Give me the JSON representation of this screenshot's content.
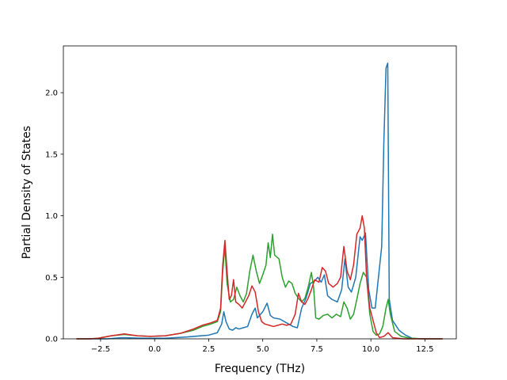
{
  "chart_data": {
    "type": "line",
    "title": "",
    "xlabel": "Frequency (THz)",
    "ylabel": "Partial Density of States",
    "xlim": [
      -4.22,
      13.95
    ],
    "ylim": [
      0,
      2.38
    ],
    "xticks": [
      -2.5,
      0.0,
      2.5,
      5.0,
      7.5,
      10.0,
      12.5
    ],
    "xtick_labels": [
      "−2.5",
      "0.0",
      "2.5",
      "5.0",
      "7.5",
      "10.0",
      "12.5"
    ],
    "yticks": [
      0.0,
      0.5,
      1.0,
      1.5,
      2.0
    ],
    "ytick_labels": [
      "0.0",
      "0.5",
      "1.0",
      "1.5",
      "2.0"
    ],
    "grid": false,
    "series": [
      {
        "color": "#1f77b4",
        "points": [
          [
            -3.6,
            0
          ],
          [
            -3,
            0
          ],
          [
            -2.2,
            0
          ],
          [
            -1.5,
            0.01
          ],
          [
            -0.5,
            0.005
          ],
          [
            0.5,
            0.005
          ],
          [
            1.5,
            0.015
          ],
          [
            2.5,
            0.03
          ],
          [
            2.9,
            0.05
          ],
          [
            3.1,
            0.12
          ],
          [
            3.2,
            0.22
          ],
          [
            3.3,
            0.14
          ],
          [
            3.45,
            0.08
          ],
          [
            3.6,
            0.07
          ],
          [
            3.75,
            0.09
          ],
          [
            3.9,
            0.08
          ],
          [
            4.1,
            0.09
          ],
          [
            4.3,
            0.1
          ],
          [
            4.5,
            0.2
          ],
          [
            4.65,
            0.25
          ],
          [
            4.75,
            0.17
          ],
          [
            5.0,
            0.22
          ],
          [
            5.2,
            0.29
          ],
          [
            5.35,
            0.19
          ],
          [
            5.5,
            0.17
          ],
          [
            5.8,
            0.16
          ],
          [
            6.1,
            0.13
          ],
          [
            6.4,
            0.1
          ],
          [
            6.6,
            0.09
          ],
          [
            6.8,
            0.25
          ],
          [
            7.0,
            0.33
          ],
          [
            7.2,
            0.45
          ],
          [
            7.4,
            0.47
          ],
          [
            7.55,
            0.5
          ],
          [
            7.7,
            0.46
          ],
          [
            7.85,
            0.52
          ],
          [
            8.0,
            0.35
          ],
          [
            8.2,
            0.32
          ],
          [
            8.45,
            0.3
          ],
          [
            8.65,
            0.4
          ],
          [
            8.8,
            0.65
          ],
          [
            8.95,
            0.42
          ],
          [
            9.1,
            0.38
          ],
          [
            9.3,
            0.5
          ],
          [
            9.5,
            0.83
          ],
          [
            9.6,
            0.8
          ],
          [
            9.75,
            0.86
          ],
          [
            9.9,
            0.4
          ],
          [
            10.05,
            0.25
          ],
          [
            10.2,
            0.25
          ],
          [
            10.35,
            0.5
          ],
          [
            10.5,
            0.75
          ],
          [
            10.6,
            1.6
          ],
          [
            10.7,
            2.2
          ],
          [
            10.78,
            2.24
          ],
          [
            10.85,
            0.32
          ],
          [
            11.0,
            0.15
          ],
          [
            11.3,
            0.07
          ],
          [
            11.6,
            0.03
          ],
          [
            11.9,
            0.005
          ],
          [
            12.3,
            0
          ],
          [
            13.3,
            0
          ]
        ]
      },
      {
        "color": "#2ca02c",
        "points": [
          [
            -3.6,
            0
          ],
          [
            -3,
            0
          ],
          [
            -2.6,
            0.005
          ],
          [
            -2.0,
            0.025
          ],
          [
            -1.4,
            0.035
          ],
          [
            -0.8,
            0.025
          ],
          [
            -0.2,
            0.02
          ],
          [
            0.5,
            0.025
          ],
          [
            1.2,
            0.045
          ],
          [
            1.8,
            0.07
          ],
          [
            2.2,
            0.1
          ],
          [
            2.6,
            0.12
          ],
          [
            2.9,
            0.14
          ],
          [
            3.05,
            0.22
          ],
          [
            3.15,
            0.55
          ],
          [
            3.25,
            0.75
          ],
          [
            3.35,
            0.45
          ],
          [
            3.5,
            0.3
          ],
          [
            3.65,
            0.32
          ],
          [
            3.8,
            0.42
          ],
          [
            3.95,
            0.35
          ],
          [
            4.1,
            0.3
          ],
          [
            4.25,
            0.37
          ],
          [
            4.4,
            0.55
          ],
          [
            4.55,
            0.68
          ],
          [
            4.7,
            0.55
          ],
          [
            4.85,
            0.45
          ],
          [
            5.0,
            0.52
          ],
          [
            5.15,
            0.6
          ],
          [
            5.25,
            0.78
          ],
          [
            5.35,
            0.66
          ],
          [
            5.45,
            0.85
          ],
          [
            5.55,
            0.68
          ],
          [
            5.75,
            0.65
          ],
          [
            5.9,
            0.5
          ],
          [
            6.05,
            0.42
          ],
          [
            6.2,
            0.47
          ],
          [
            6.35,
            0.45
          ],
          [
            6.5,
            0.37
          ],
          [
            6.65,
            0.33
          ],
          [
            6.8,
            0.3
          ],
          [
            6.95,
            0.33
          ],
          [
            7.1,
            0.42
          ],
          [
            7.25,
            0.54
          ],
          [
            7.35,
            0.42
          ],
          [
            7.45,
            0.17
          ],
          [
            7.6,
            0.16
          ],
          [
            7.8,
            0.19
          ],
          [
            8.0,
            0.2
          ],
          [
            8.2,
            0.17
          ],
          [
            8.4,
            0.2
          ],
          [
            8.6,
            0.18
          ],
          [
            8.75,
            0.3
          ],
          [
            8.9,
            0.25
          ],
          [
            9.05,
            0.16
          ],
          [
            9.2,
            0.2
          ],
          [
            9.35,
            0.32
          ],
          [
            9.5,
            0.45
          ],
          [
            9.65,
            0.54
          ],
          [
            9.8,
            0.5
          ],
          [
            9.95,
            0.2
          ],
          [
            10.1,
            0.06
          ],
          [
            10.25,
            0.03
          ],
          [
            10.4,
            0.04
          ],
          [
            10.55,
            0.1
          ],
          [
            10.7,
            0.25
          ],
          [
            10.8,
            0.32
          ],
          [
            10.9,
            0.2
          ],
          [
            11.1,
            0.06
          ],
          [
            11.4,
            0.02
          ],
          [
            11.8,
            0.005
          ],
          [
            12.5,
            0
          ],
          [
            13.3,
            0
          ]
        ]
      },
      {
        "color": "#d62728",
        "points": [
          [
            -3.6,
            0
          ],
          [
            -3,
            0
          ],
          [
            -2.6,
            0.005
          ],
          [
            -2.0,
            0.025
          ],
          [
            -1.4,
            0.04
          ],
          [
            -0.8,
            0.025
          ],
          [
            -0.2,
            0.02
          ],
          [
            0.5,
            0.025
          ],
          [
            1.2,
            0.045
          ],
          [
            1.8,
            0.08
          ],
          [
            2.2,
            0.11
          ],
          [
            2.6,
            0.13
          ],
          [
            2.9,
            0.15
          ],
          [
            3.05,
            0.25
          ],
          [
            3.15,
            0.6
          ],
          [
            3.25,
            0.8
          ],
          [
            3.35,
            0.55
          ],
          [
            3.45,
            0.32
          ],
          [
            3.55,
            0.35
          ],
          [
            3.65,
            0.48
          ],
          [
            3.75,
            0.3
          ],
          [
            3.9,
            0.28
          ],
          [
            4.05,
            0.25
          ],
          [
            4.2,
            0.3
          ],
          [
            4.35,
            0.35
          ],
          [
            4.5,
            0.43
          ],
          [
            4.65,
            0.38
          ],
          [
            4.8,
            0.22
          ],
          [
            4.95,
            0.14
          ],
          [
            5.1,
            0.12
          ],
          [
            5.3,
            0.11
          ],
          [
            5.5,
            0.1
          ],
          [
            5.7,
            0.11
          ],
          [
            5.9,
            0.12
          ],
          [
            6.1,
            0.11
          ],
          [
            6.3,
            0.12
          ],
          [
            6.5,
            0.2
          ],
          [
            6.65,
            0.37
          ],
          [
            6.8,
            0.3
          ],
          [
            6.95,
            0.28
          ],
          [
            7.1,
            0.33
          ],
          [
            7.25,
            0.4
          ],
          [
            7.4,
            0.48
          ],
          [
            7.6,
            0.46
          ],
          [
            7.75,
            0.58
          ],
          [
            7.9,
            0.55
          ],
          [
            8.05,
            0.45
          ],
          [
            8.25,
            0.42
          ],
          [
            8.45,
            0.45
          ],
          [
            8.6,
            0.5
          ],
          [
            8.75,
            0.75
          ],
          [
            8.9,
            0.55
          ],
          [
            9.05,
            0.48
          ],
          [
            9.2,
            0.6
          ],
          [
            9.35,
            0.85
          ],
          [
            9.5,
            0.9
          ],
          [
            9.6,
            1.0
          ],
          [
            9.7,
            0.9
          ],
          [
            9.8,
            0.5
          ],
          [
            9.95,
            0.25
          ],
          [
            10.1,
            0.15
          ],
          [
            10.25,
            0.05
          ],
          [
            10.4,
            0.01
          ],
          [
            10.6,
            0.02
          ],
          [
            10.8,
            0.05
          ],
          [
            11.0,
            0.01
          ],
          [
            11.5,
            0
          ],
          [
            13.3,
            0
          ]
        ]
      }
    ]
  }
}
